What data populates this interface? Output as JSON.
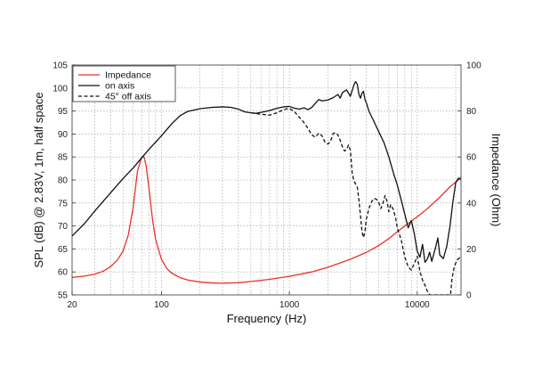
{
  "chart_data": {
    "type": "line",
    "xlabel": "Frequency (Hz)",
    "ylabel": "SPL (dB) @ 2.83V, 1m, half space",
    "y2label": "Impedance (Ohm)",
    "xscale": "log",
    "xlim": [
      20,
      22000
    ],
    "ylim": [
      55,
      105
    ],
    "y2lim": [
      0,
      100
    ],
    "xticks": [
      {
        "value": 20,
        "label": "20"
      },
      {
        "value": 100,
        "label": "100"
      },
      {
        "value": 1000,
        "label": "1000"
      },
      {
        "value": 10000,
        "label": "10000"
      }
    ],
    "yticks": [
      {
        "value": 55,
        "label": "55"
      },
      {
        "value": 60,
        "label": "60"
      },
      {
        "value": 65,
        "label": "65"
      },
      {
        "value": 70,
        "label": "70"
      },
      {
        "value": 75,
        "label": "75"
      },
      {
        "value": 80,
        "label": "80"
      },
      {
        "value": 85,
        "label": "85"
      },
      {
        "value": 90,
        "label": "90"
      },
      {
        "value": 95,
        "label": "95"
      },
      {
        "value": 100,
        "label": "100"
      },
      {
        "value": 105,
        "label": "105"
      }
    ],
    "y2ticks": [
      {
        "value": 0,
        "label": "0"
      },
      {
        "value": 20,
        "label": "20"
      },
      {
        "value": 40,
        "label": "40"
      },
      {
        "value": 60,
        "label": "60"
      },
      {
        "value": 80,
        "label": "80"
      },
      {
        "value": 100,
        "label": "100"
      }
    ],
    "grid": true,
    "legend_position": "top-left",
    "series": [
      {
        "name": "Impedance",
        "axis": "right",
        "color": "#e8312a",
        "style": "solid",
        "points": [
          [
            20,
            7.6
          ],
          [
            25,
            8.2
          ],
          [
            30,
            9
          ],
          [
            35,
            10.3
          ],
          [
            40,
            12.3
          ],
          [
            45,
            15
          ],
          [
            50,
            19
          ],
          [
            55,
            26
          ],
          [
            60,
            38
          ],
          [
            65,
            54
          ],
          [
            70,
            60
          ],
          [
            73,
            60
          ],
          [
            76,
            56
          ],
          [
            80,
            46
          ],
          [
            85,
            33
          ],
          [
            90,
            24
          ],
          [
            100,
            15.5
          ],
          [
            110,
            11.5
          ],
          [
            120,
            9.5
          ],
          [
            140,
            7.5
          ],
          [
            160,
            6.5
          ],
          [
            200,
            5.6
          ],
          [
            250,
            5.2
          ],
          [
            300,
            5.1
          ],
          [
            400,
            5.3
          ],
          [
            500,
            5.8
          ],
          [
            700,
            6.8
          ],
          [
            1000,
            8.1
          ],
          [
            1500,
            10
          ],
          [
            2000,
            12
          ],
          [
            3000,
            15.5
          ],
          [
            4000,
            18.5
          ],
          [
            5000,
            21.5
          ],
          [
            6000,
            24.5
          ],
          [
            7000,
            27.5
          ],
          [
            8000,
            30
          ],
          [
            10000,
            34
          ],
          [
            12000,
            37.5
          ],
          [
            15000,
            42.5
          ],
          [
            18000,
            47
          ],
          [
            22000,
            51
          ]
        ]
      },
      {
        "name": "on axis",
        "axis": "left",
        "color": "#111111",
        "style": "solid",
        "points": [
          [
            20,
            67.8
          ],
          [
            25,
            70.5
          ],
          [
            30,
            73.2
          ],
          [
            40,
            77.2
          ],
          [
            50,
            80.3
          ],
          [
            60,
            82.6
          ],
          [
            70,
            84.8
          ],
          [
            80,
            86.7
          ],
          [
            100,
            89.6
          ],
          [
            120,
            92.2
          ],
          [
            140,
            94
          ],
          [
            160,
            94.9
          ],
          [
            200,
            95.5
          ],
          [
            250,
            95.8
          ],
          [
            300,
            95.9
          ],
          [
            350,
            95.8
          ],
          [
            400,
            95.4
          ],
          [
            450,
            94.8
          ],
          [
            500,
            94.6
          ],
          [
            550,
            94.5
          ],
          [
            600,
            94.7
          ],
          [
            700,
            95.1
          ],
          [
            800,
            95.6
          ],
          [
            900,
            95.9
          ],
          [
            1000,
            96
          ],
          [
            1100,
            95.6
          ],
          [
            1200,
            95.4
          ],
          [
            1300,
            95.7
          ],
          [
            1400,
            95.3
          ],
          [
            1500,
            95.8
          ],
          [
            1600,
            96.7
          ],
          [
            1700,
            97.5
          ],
          [
            1800,
            97.2
          ],
          [
            2000,
            97.4
          ],
          [
            2200,
            97.9
          ],
          [
            2400,
            98.6
          ],
          [
            2500,
            97.8
          ],
          [
            2600,
            99
          ],
          [
            2800,
            99.6
          ],
          [
            3000,
            98.2
          ],
          [
            3200,
            100.7
          ],
          [
            3300,
            101.4
          ],
          [
            3400,
            100.8
          ],
          [
            3500,
            98.6
          ],
          [
            3600,
            97.8
          ],
          [
            3700,
            98.9
          ],
          [
            3800,
            99.3
          ],
          [
            3900,
            97.5
          ],
          [
            4000,
            96.8
          ],
          [
            4200,
            94.9
          ],
          [
            4500,
            93.2
          ],
          [
            5000,
            90.5
          ],
          [
            5500,
            88.1
          ],
          [
            6000,
            85
          ],
          [
            6500,
            81.6
          ],
          [
            7000,
            78.8
          ],
          [
            7500,
            75.6
          ],
          [
            8000,
            72.5
          ],
          [
            8500,
            69.6
          ],
          [
            9000,
            71.2
          ],
          [
            9500,
            68.2
          ],
          [
            10000,
            64.5
          ],
          [
            10500,
            63.2
          ],
          [
            11000,
            66
          ],
          [
            11500,
            62.1
          ],
          [
            12000,
            62.8
          ],
          [
            12500,
            64.3
          ],
          [
            13000,
            62.3
          ],
          [
            14000,
            65.6
          ],
          [
            14500,
            67.4
          ],
          [
            15000,
            63.7
          ],
          [
            16000,
            62.9
          ],
          [
            17000,
            65.5
          ],
          [
            18000,
            69.8
          ],
          [
            19000,
            75.2
          ],
          [
            20000,
            79.4
          ],
          [
            21000,
            80.4
          ],
          [
            22000,
            80.1
          ]
        ]
      },
      {
        "name": "45° off axis",
        "axis": "left",
        "color": "#111111",
        "style": "dashed",
        "points": [
          [
            500,
            94.6
          ],
          [
            600,
            94.3
          ],
          [
            700,
            94.1
          ],
          [
            800,
            94.6
          ],
          [
            900,
            95.3
          ],
          [
            1000,
            95.6
          ],
          [
            1100,
            94.8
          ],
          [
            1200,
            93.6
          ],
          [
            1300,
            92.5
          ],
          [
            1400,
            91.2
          ],
          [
            1500,
            89.8
          ],
          [
            1600,
            89.3
          ],
          [
            1700,
            90.2
          ],
          [
            1800,
            89.6
          ],
          [
            1900,
            88.2
          ],
          [
            2000,
            87.8
          ],
          [
            2100,
            88.4
          ],
          [
            2200,
            90.1
          ],
          [
            2300,
            90.3
          ],
          [
            2400,
            89.8
          ],
          [
            2500,
            88.6
          ],
          [
            2600,
            87.2
          ],
          [
            2700,
            86.3
          ],
          [
            2800,
            86.6
          ],
          [
            2900,
            87.6
          ],
          [
            3000,
            86.5
          ],
          [
            3100,
            81.5
          ],
          [
            3200,
            79.8
          ],
          [
            3300,
            79.1
          ],
          [
            3400,
            78.4
          ],
          [
            3500,
            75.6
          ],
          [
            3600,
            72.2
          ],
          [
            3700,
            68.7
          ],
          [
            3800,
            67.5
          ],
          [
            3900,
            68.7
          ],
          [
            4000,
            71.5
          ],
          [
            4200,
            73.9
          ],
          [
            4400,
            75.3
          ],
          [
            4600,
            76
          ],
          [
            4800,
            75.8
          ],
          [
            5000,
            75.1
          ],
          [
            5200,
            73.8
          ],
          [
            5400,
            75
          ],
          [
            5600,
            76.6
          ],
          [
            5800,
            75.4
          ],
          [
            6000,
            73.1
          ],
          [
            6200,
            74.6
          ],
          [
            6500,
            73.6
          ],
          [
            6800,
            71.5
          ],
          [
            7000,
            69.5
          ],
          [
            7500,
            66.9
          ],
          [
            8000,
            63.2
          ],
          [
            8500,
            61.1
          ],
          [
            9000,
            60.4
          ],
          [
            9500,
            61.9
          ],
          [
            10000,
            63.4
          ],
          [
            10500,
            60.1
          ],
          [
            11000,
            58.2
          ],
          [
            11500,
            57.1
          ],
          [
            12000,
            55.8
          ],
          [
            12500,
            55
          ],
          [
            18200,
            55
          ],
          [
            18700,
            58.5
          ],
          [
            19500,
            61.2
          ],
          [
            20500,
            62.6
          ],
          [
            21500,
            63.1
          ],
          [
            22000,
            62.9
          ]
        ]
      }
    ]
  }
}
